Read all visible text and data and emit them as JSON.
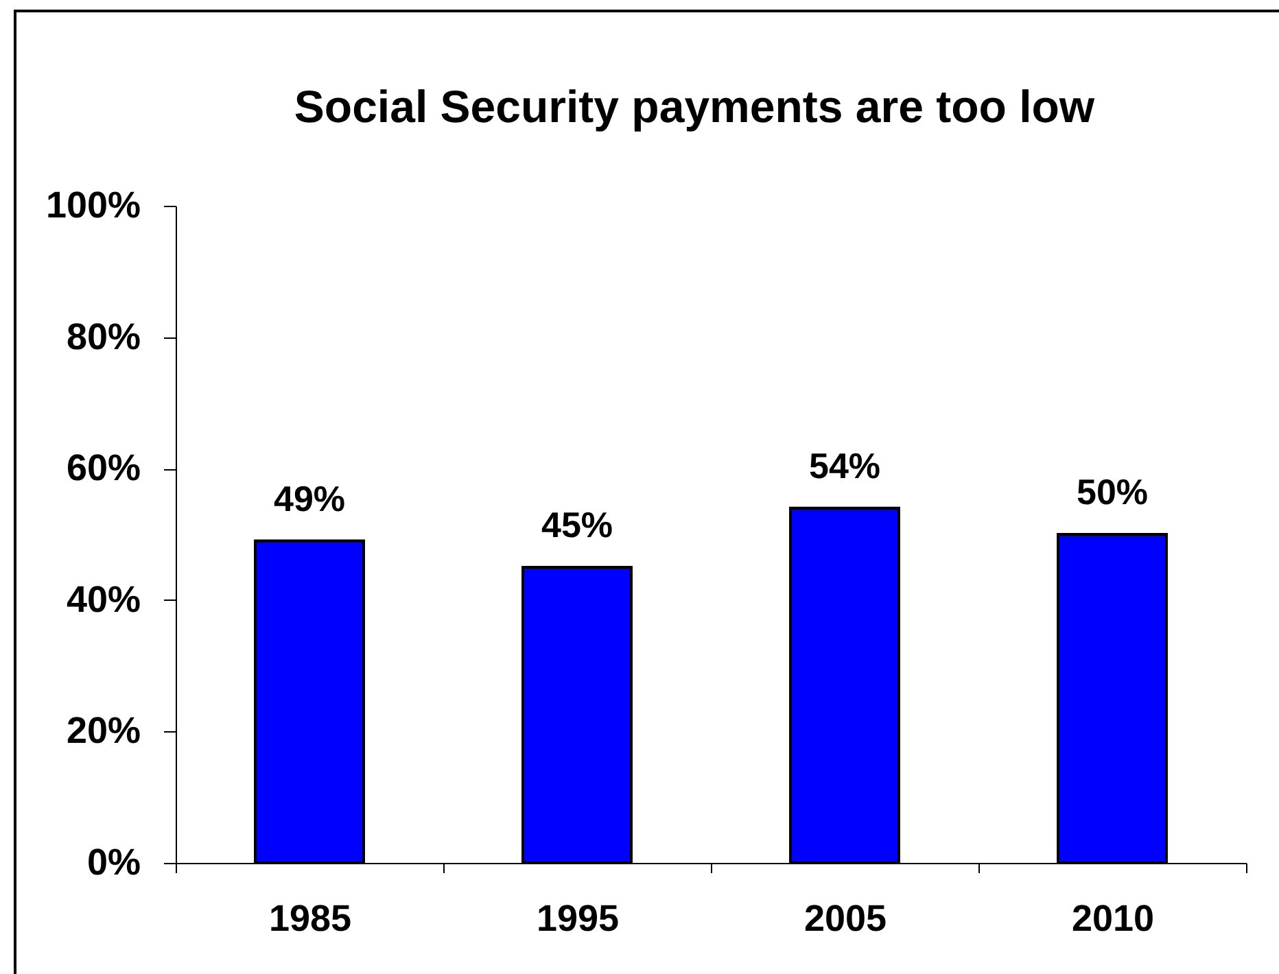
{
  "chart_data": {
    "type": "bar",
    "title": "Social Security payments are too low",
    "categories": [
      "1985",
      "1995",
      "2005",
      "2010"
    ],
    "values": [
      49,
      45,
      54,
      50
    ],
    "value_labels": [
      "49%",
      "45%",
      "54%",
      "50%"
    ],
    "color": "#0000ff",
    "ylim": [
      0,
      100
    ],
    "yticks": [
      {
        "value": 0,
        "label": "0%"
      },
      {
        "value": 20,
        "label": "20%"
      },
      {
        "value": 40,
        "label": "40%"
      },
      {
        "value": 60,
        "label": "60%"
      },
      {
        "value": 80,
        "label": "80%"
      },
      {
        "value": 100,
        "label": "100%"
      }
    ]
  }
}
